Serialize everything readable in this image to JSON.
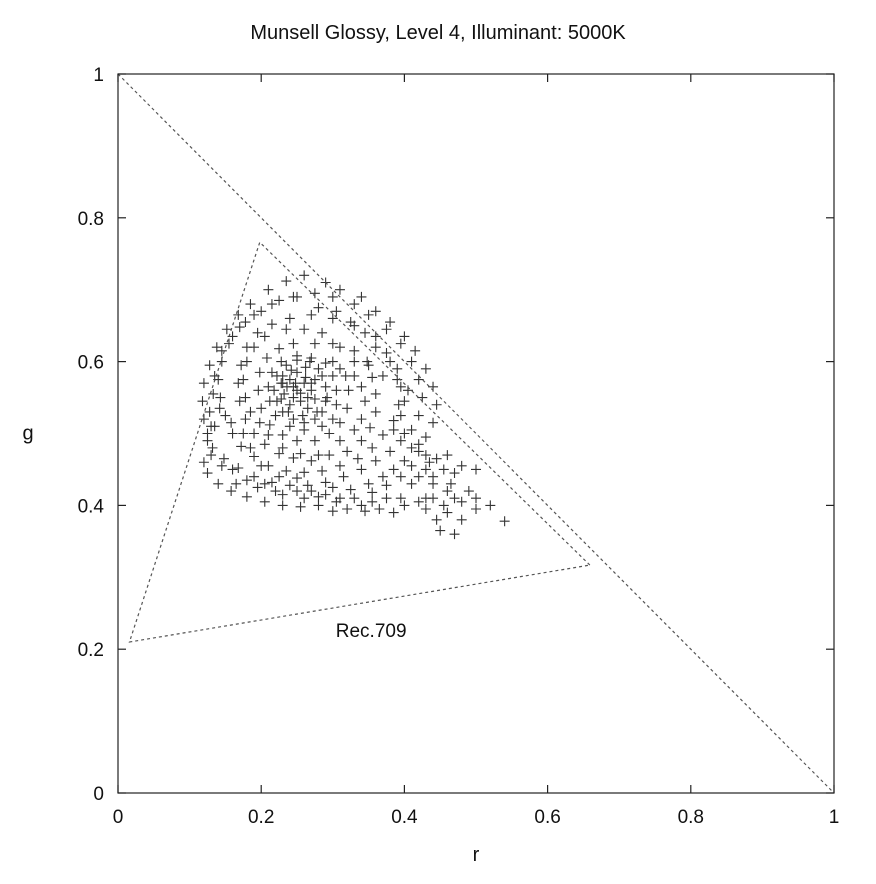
{
  "chart_data": {
    "type": "scatter",
    "title": "Munsell Glossy, Level 4, Illuminant: 5000K",
    "xlabel": "r",
    "ylabel": "g",
    "xlim": [
      0,
      1
    ],
    "ylim": [
      0,
      1
    ],
    "xticks": [
      "0",
      "0.2",
      "0.4",
      "0.6",
      "0.8",
      "1"
    ],
    "yticks": [
      "0",
      "0.2",
      "0.4",
      "0.6",
      "0.8",
      "1"
    ],
    "xtick_values": [
      0,
      0.2,
      0.4,
      0.6,
      0.8,
      1
    ],
    "ytick_values": [
      0,
      0.2,
      0.4,
      0.6,
      0.8,
      1
    ],
    "marker": "+",
    "annotation": "Rec.709",
    "annotation_at": [
      0.36,
      0.22
    ],
    "gamut_triangle": [
      [
        0.659,
        0.317
      ],
      [
        0.198,
        0.766
      ],
      [
        0.016,
        0.21
      ]
    ],
    "spectral_line": [
      [
        0,
        1
      ],
      [
        1,
        0
      ]
    ],
    "grid": false,
    "points": [
      [
        0.255,
        0.556
      ],
      [
        0.25,
        0.56
      ],
      [
        0.245,
        0.565
      ],
      [
        0.26,
        0.57
      ],
      [
        0.24,
        0.575
      ],
      [
        0.23,
        0.58
      ],
      [
        0.232,
        0.555
      ],
      [
        0.265,
        0.55
      ],
      [
        0.255,
        0.545
      ],
      [
        0.23,
        0.57
      ],
      [
        0.245,
        0.55
      ],
      [
        0.27,
        0.56
      ],
      [
        0.25,
        0.585
      ],
      [
        0.275,
        0.575
      ],
      [
        0.285,
        0.58
      ],
      [
        0.29,
        0.565
      ],
      [
        0.292,
        0.55
      ],
      [
        0.285,
        0.53
      ],
      [
        0.275,
        0.52
      ],
      [
        0.26,
        0.515
      ],
      [
        0.245,
        0.52
      ],
      [
        0.23,
        0.53
      ],
      [
        0.222,
        0.545
      ],
      [
        0.218,
        0.56
      ],
      [
        0.222,
        0.58
      ],
      [
        0.235,
        0.595
      ],
      [
        0.25,
        0.602
      ],
      [
        0.268,
        0.6
      ],
      [
        0.3,
        0.6
      ],
      [
        0.318,
        0.58
      ],
      [
        0.322,
        0.56
      ],
      [
        0.32,
        0.535
      ],
      [
        0.31,
        0.515
      ],
      [
        0.295,
        0.5
      ],
      [
        0.275,
        0.49
      ],
      [
        0.25,
        0.49
      ],
      [
        0.23,
        0.498
      ],
      [
        0.212,
        0.512
      ],
      [
        0.2,
        0.535
      ],
      [
        0.196,
        0.56
      ],
      [
        0.198,
        0.585
      ],
      [
        0.208,
        0.605
      ],
      [
        0.225,
        0.618
      ],
      [
        0.245,
        0.625
      ],
      [
        0.275,
        0.625
      ],
      [
        0.3,
        0.625
      ],
      [
        0.33,
        0.615
      ],
      [
        0.348,
        0.6
      ],
      [
        0.355,
        0.578
      ],
      [
        0.36,
        0.555
      ],
      [
        0.36,
        0.53
      ],
      [
        0.352,
        0.508
      ],
      [
        0.34,
        0.49
      ],
      [
        0.32,
        0.475
      ],
      [
        0.295,
        0.47
      ],
      [
        0.27,
        0.462
      ],
      [
        0.245,
        0.466
      ],
      [
        0.225,
        0.472
      ],
      [
        0.205,
        0.485
      ],
      [
        0.19,
        0.5
      ],
      [
        0.178,
        0.52
      ],
      [
        0.17,
        0.545
      ],
      [
        0.168,
        0.57
      ],
      [
        0.172,
        0.595
      ],
      [
        0.18,
        0.62
      ],
      [
        0.195,
        0.64
      ],
      [
        0.215,
        0.652
      ],
      [
        0.24,
        0.66
      ],
      [
        0.27,
        0.665
      ],
      [
        0.3,
        0.66
      ],
      [
        0.33,
        0.65
      ],
      [
        0.36,
        0.635
      ],
      [
        0.375,
        0.612
      ],
      [
        0.39,
        0.59
      ],
      [
        0.395,
        0.565
      ],
      [
        0.392,
        0.54
      ],
      [
        0.385,
        0.518
      ],
      [
        0.37,
        0.498
      ],
      [
        0.355,
        0.48
      ],
      [
        0.335,
        0.465
      ],
      [
        0.31,
        0.455
      ],
      [
        0.285,
        0.448
      ],
      [
        0.26,
        0.446
      ],
      [
        0.235,
        0.448
      ],
      [
        0.21,
        0.455
      ],
      [
        0.19,
        0.468
      ],
      [
        0.172,
        0.482
      ],
      [
        0.16,
        0.5
      ],
      [
        0.15,
        0.525
      ],
      [
        0.143,
        0.55
      ],
      [
        0.14,
        0.575
      ],
      [
        0.145,
        0.6
      ],
      [
        0.155,
        0.625
      ],
      [
        0.17,
        0.648
      ],
      [
        0.19,
        0.665
      ],
      [
        0.215,
        0.68
      ],
      [
        0.245,
        0.69
      ],
      [
        0.275,
        0.695
      ],
      [
        0.3,
        0.69
      ],
      [
        0.33,
        0.68
      ],
      [
        0.35,
        0.665
      ],
      [
        0.375,
        0.645
      ],
      [
        0.395,
        0.625
      ],
      [
        0.41,
        0.6
      ],
      [
        0.42,
        0.575
      ],
      [
        0.425,
        0.55
      ],
      [
        0.42,
        0.525
      ],
      [
        0.41,
        0.505
      ],
      [
        0.395,
        0.49
      ],
      [
        0.38,
        0.475
      ],
      [
        0.36,
        0.462
      ],
      [
        0.34,
        0.45
      ],
      [
        0.315,
        0.44
      ],
      [
        0.29,
        0.432
      ],
      [
        0.265,
        0.428
      ],
      [
        0.24,
        0.428
      ],
      [
        0.215,
        0.432
      ],
      [
        0.19,
        0.44
      ],
      [
        0.168,
        0.452
      ],
      [
        0.148,
        0.465
      ],
      [
        0.132,
        0.48
      ],
      [
        0.125,
        0.5
      ],
      [
        0.12,
        0.52
      ],
      [
        0.118,
        0.545
      ],
      [
        0.12,
        0.57
      ],
      [
        0.128,
        0.595
      ],
      [
        0.138,
        0.62
      ],
      [
        0.152,
        0.645
      ],
      [
        0.168,
        0.665
      ],
      [
        0.185,
        0.68
      ],
      [
        0.21,
        0.7
      ],
      [
        0.235,
        0.712
      ],
      [
        0.26,
        0.72
      ],
      [
        0.29,
        0.71
      ],
      [
        0.31,
        0.7
      ],
      [
        0.34,
        0.69
      ],
      [
        0.36,
        0.67
      ],
      [
        0.38,
        0.655
      ],
      [
        0.4,
        0.635
      ],
      [
        0.415,
        0.615
      ],
      [
        0.43,
        0.59
      ],
      [
        0.44,
        0.565
      ],
      [
        0.445,
        0.54
      ],
      [
        0.44,
        0.515
      ],
      [
        0.43,
        0.495
      ],
      [
        0.42,
        0.475
      ],
      [
        0.41,
        0.455
      ],
      [
        0.395,
        0.44
      ],
      [
        0.375,
        0.428
      ],
      [
        0.355,
        0.418
      ],
      [
        0.33,
        0.41
      ],
      [
        0.305,
        0.405
      ],
      [
        0.28,
        0.4
      ],
      [
        0.255,
        0.398
      ],
      [
        0.23,
        0.4
      ],
      [
        0.205,
        0.405
      ],
      [
        0.18,
        0.412
      ],
      [
        0.158,
        0.42
      ],
      [
        0.14,
        0.43
      ],
      [
        0.125,
        0.445
      ],
      [
        0.12,
        0.46
      ],
      [
        0.135,
        0.51
      ],
      [
        0.142,
        0.535
      ],
      [
        0.158,
        0.515
      ],
      [
        0.175,
        0.5
      ],
      [
        0.185,
        0.48
      ],
      [
        0.2,
        0.455
      ],
      [
        0.225,
        0.44
      ],
      [
        0.25,
        0.438
      ],
      [
        0.3,
        0.425
      ],
      [
        0.325,
        0.422
      ],
      [
        0.35,
        0.43
      ],
      [
        0.37,
        0.44
      ],
      [
        0.385,
        0.45
      ],
      [
        0.4,
        0.462
      ],
      [
        0.42,
        0.44
      ],
      [
        0.44,
        0.43
      ],
      [
        0.46,
        0.42
      ],
      [
        0.48,
        0.405
      ],
      [
        0.5,
        0.395
      ],
      [
        0.54,
        0.378
      ],
      [
        0.42,
        0.405
      ],
      [
        0.44,
        0.41
      ],
      [
        0.445,
        0.38
      ],
      [
        0.46,
        0.39
      ],
      [
        0.48,
        0.38
      ],
      [
        0.45,
        0.365
      ],
      [
        0.47,
        0.36
      ],
      [
        0.43,
        0.395
      ],
      [
        0.4,
        0.4
      ],
      [
        0.385,
        0.39
      ],
      [
        0.365,
        0.395
      ],
      [
        0.345,
        0.392
      ],
      [
        0.32,
        0.395
      ],
      [
        0.3,
        0.392
      ],
      [
        0.28,
        0.412
      ],
      [
        0.26,
        0.41
      ],
      [
        0.23,
        0.415
      ],
      [
        0.205,
        0.43
      ],
      [
        0.18,
        0.435
      ],
      [
        0.16,
        0.45
      ],
      [
        0.145,
        0.455
      ],
      [
        0.455,
        0.45
      ],
      [
        0.47,
        0.445
      ],
      [
        0.445,
        0.465
      ],
      [
        0.46,
        0.47
      ],
      [
        0.48,
        0.455
      ],
      [
        0.5,
        0.45
      ],
      [
        0.42,
        0.485
      ],
      [
        0.43,
        0.47
      ],
      [
        0.435,
        0.46
      ],
      [
        0.41,
        0.48
      ],
      [
        0.4,
        0.5
      ],
      [
        0.385,
        0.505
      ],
      [
        0.395,
        0.525
      ],
      [
        0.4,
        0.545
      ],
      [
        0.405,
        0.56
      ],
      [
        0.37,
        0.58
      ],
      [
        0.35,
        0.595
      ],
      [
        0.33,
        0.6
      ],
      [
        0.31,
        0.62
      ],
      [
        0.285,
        0.64
      ],
      [
        0.26,
        0.645
      ],
      [
        0.235,
        0.645
      ],
      [
        0.205,
        0.635
      ],
      [
        0.19,
        0.62
      ],
      [
        0.18,
        0.6
      ],
      [
        0.175,
        0.575
      ],
      [
        0.178,
        0.55
      ],
      [
        0.185,
        0.53
      ],
      [
        0.198,
        0.515
      ],
      [
        0.21,
        0.498
      ],
      [
        0.23,
        0.48
      ],
      [
        0.255,
        0.472
      ],
      [
        0.28,
        0.47
      ],
      [
        0.31,
        0.49
      ],
      [
        0.33,
        0.505
      ],
      [
        0.34,
        0.52
      ],
      [
        0.345,
        0.545
      ],
      [
        0.34,
        0.565
      ],
      [
        0.33,
        0.58
      ],
      [
        0.31,
        0.59
      ],
      [
        0.29,
        0.598
      ],
      [
        0.27,
        0.605
      ],
      [
        0.25,
        0.608
      ],
      [
        0.228,
        0.6
      ],
      [
        0.215,
        0.585
      ],
      [
        0.21,
        0.565
      ],
      [
        0.212,
        0.545
      ],
      [
        0.22,
        0.525
      ],
      [
        0.24,
        0.51
      ],
      [
        0.26,
        0.505
      ],
      [
        0.285,
        0.51
      ],
      [
        0.3,
        0.52
      ],
      [
        0.305,
        0.54
      ],
      [
        0.305,
        0.56
      ],
      [
        0.3,
        0.58
      ],
      [
        0.28,
        0.59
      ],
      [
        0.262,
        0.592
      ],
      [
        0.242,
        0.588
      ],
      [
        0.228,
        0.57
      ],
      [
        0.228,
        0.548
      ],
      [
        0.238,
        0.53
      ],
      [
        0.258,
        0.525
      ],
      [
        0.278,
        0.53
      ],
      [
        0.29,
        0.545
      ],
      [
        0.24,
        0.54
      ],
      [
        0.265,
        0.535
      ],
      [
        0.275,
        0.548
      ],
      [
        0.248,
        0.57
      ],
      [
        0.236,
        0.565
      ],
      [
        0.27,
        0.57
      ],
      [
        0.262,
        0.578
      ],
      [
        0.5,
        0.41
      ],
      [
        0.52,
        0.4
      ],
      [
        0.49,
        0.42
      ],
      [
        0.47,
        0.41
      ],
      [
        0.465,
        0.43
      ],
      [
        0.455,
        0.4
      ],
      [
        0.43,
        0.41
      ],
      [
        0.44,
        0.44
      ],
      [
        0.43,
        0.45
      ],
      [
        0.41,
        0.43
      ],
      [
        0.395,
        0.41
      ],
      [
        0.375,
        0.41
      ],
      [
        0.355,
        0.405
      ],
      [
        0.34,
        0.4
      ],
      [
        0.31,
        0.41
      ],
      [
        0.29,
        0.415
      ],
      [
        0.27,
        0.42
      ],
      [
        0.25,
        0.42
      ],
      [
        0.22,
        0.42
      ],
      [
        0.195,
        0.425
      ],
      [
        0.165,
        0.43
      ],
      [
        0.13,
        0.47
      ],
      [
        0.125,
        0.49
      ],
      [
        0.13,
        0.51
      ],
      [
        0.128,
        0.53
      ],
      [
        0.133,
        0.555
      ],
      [
        0.135,
        0.58
      ],
      [
        0.145,
        0.615
      ],
      [
        0.16,
        0.635
      ],
      [
        0.178,
        0.655
      ],
      [
        0.2,
        0.67
      ],
      [
        0.225,
        0.685
      ],
      [
        0.25,
        0.69
      ],
      [
        0.28,
        0.675
      ],
      [
        0.305,
        0.67
      ],
      [
        0.325,
        0.655
      ],
      [
        0.345,
        0.64
      ],
      [
        0.36,
        0.62
      ],
      [
        0.38,
        0.6
      ],
      [
        0.39,
        0.575
      ]
    ]
  }
}
